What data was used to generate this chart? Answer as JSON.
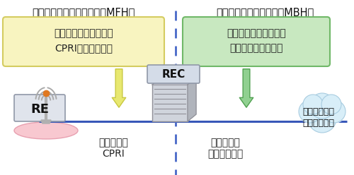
{
  "bg_color": "#ffffff",
  "title_left": "モバイルフロントホール（MFH）",
  "title_right": "モバイルバックホール（MBH）",
  "box_left_line1": "ファイバの反射減衰量",
  "box_left_line2": "CPRIデータの品質",
  "box_right_line1": "ファイバの反射減衰量",
  "box_right_line2": "イーサネットの品質",
  "box_left_color": "#f8f4c0",
  "box_left_border": "#d4cc60",
  "box_right_color": "#c8e8c0",
  "box_right_border": "#70b868",
  "label_re": "RE",
  "label_rec": "REC",
  "label_left_bottom1": "光ファイバ",
  "label_left_bottom2": "CPRI",
  "label_right_bottom1": "光ファイバ",
  "label_right_bottom2": "イーサネット",
  "label_metro1": "メトロ／コア",
  "label_metro2": "ネットワーク",
  "arrow_left_color": "#e8e870",
  "arrow_left_edge": "#c8c840",
  "arrow_right_color": "#90d090",
  "arrow_right_edge": "#50a050",
  "hline_color": "#3858b8",
  "dline_color": "#4868c8",
  "ellipse_color": "#f8c8d0",
  "ellipse_edge": "#e8a0b0",
  "cloud_color": "#d8eef8",
  "cloud_edge": "#a8cce0",
  "re_box_color": "#e0e4ec",
  "re_box_edge": "#9098a8",
  "rec_box_color": "#d4dce8",
  "rec_box_edge": "#9098a8",
  "antenna_color": "#aaaaaa",
  "mast_color": "#b0b0b0",
  "orange_dot": "#e07820",
  "server_color": "#b8bcc8",
  "server_edge": "#909098",
  "font_jp": "IPAGothic",
  "font_en": "DejaVu Sans"
}
